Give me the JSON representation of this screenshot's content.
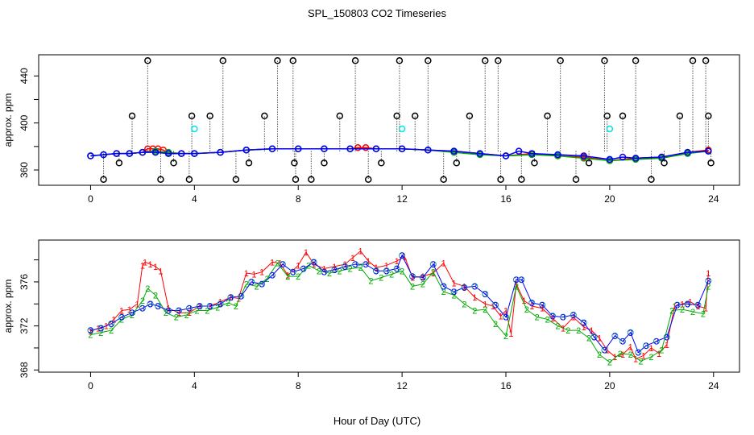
{
  "chart_data": [
    {
      "type": "scatter",
      "title": "SPL_150803  CO2 Timeseries",
      "xlabel": "Hour of Day (UTC)",
      "ylabel": "approx. ppm",
      "xlim": [
        -2,
        25
      ],
      "ylim": [
        347,
        458
      ],
      "xticks": [
        "0",
        "4",
        "8",
        "12",
        "16",
        "20",
        "24"
      ],
      "yticks": [
        "360",
        "400",
        "440"
      ],
      "series": [
        {
          "name": "red",
          "color": "#ff0000",
          "marker": "circle",
          "x": [
            0,
            0.5,
            1,
            1.5,
            2,
            2.2,
            2.4,
            2.6,
            2.8,
            3,
            3.5,
            4,
            5,
            6,
            7,
            8,
            9,
            10,
            10.3,
            10.6,
            11,
            12,
            13,
            14,
            15,
            16,
            17,
            18,
            19,
            20,
            21,
            22,
            23,
            23.8
          ],
          "y": [
            372,
            373,
            374,
            374,
            375,
            378,
            378,
            378,
            377,
            374,
            374,
            374,
            375,
            377,
            378,
            378,
            378,
            378,
            379,
            379,
            378,
            378,
            377,
            376,
            374,
            372,
            374,
            372,
            371,
            368,
            370,
            371,
            375,
            377
          ]
        },
        {
          "name": "green",
          "color": "#00aa00",
          "marker": "circle",
          "x": [
            0,
            0.5,
            1,
            1.5,
            2,
            2.5,
            3,
            3.5,
            4,
            5,
            6,
            7,
            8,
            9,
            10,
            11,
            12,
            13,
            14,
            15,
            16,
            17,
            18,
            19,
            20,
            21,
            22,
            23,
            23.8
          ],
          "y": [
            372,
            373,
            374,
            374,
            375,
            376,
            375,
            374,
            374,
            375,
            377,
            378,
            378,
            378,
            378,
            378,
            378,
            377,
            375,
            373,
            372,
            373,
            372,
            370,
            368,
            369,
            370,
            374,
            376
          ]
        },
        {
          "name": "blue",
          "color": "#0000ff",
          "marker": "circle",
          "x": [
            0,
            0.5,
            1,
            1.5,
            2,
            2.5,
            3,
            3.5,
            4,
            5,
            6,
            7,
            8,
            9,
            10,
            11,
            12,
            13,
            14,
            15,
            16,
            16.5,
            17,
            18,
            19,
            20,
            20.5,
            21,
            22,
            23,
            23.8
          ],
          "y": [
            372,
            373,
            374,
            374,
            375,
            375,
            374,
            374,
            374,
            375,
            377,
            378,
            378,
            378,
            378,
            378,
            378,
            377,
            376,
            374,
            372,
            376,
            374,
            373,
            372,
            369,
            371,
            370,
            371,
            375,
            376
          ]
        },
        {
          "name": "black",
          "color": "#000000",
          "marker": "circle",
          "x": [
            0.5,
            1.1,
            1.6,
            2.2,
            2.7,
            3.2,
            3.8,
            3.9,
            4.6,
            5.1,
            5.6,
            6.1,
            6.7,
            7.2,
            7.8,
            7.85,
            7.9,
            8.5,
            9.0,
            9.6,
            10.2,
            10.7,
            11.2,
            11.8,
            11.9,
            12.5,
            13.0,
            13.6,
            14.1,
            14.6,
            15.2,
            15.7,
            15.8,
            16.6,
            17.1,
            17.6,
            18.1,
            18.7,
            19.2,
            19.8,
            19.9,
            20.5,
            21.0,
            21.6,
            22.1,
            22.7,
            23.2,
            23.7,
            23.8,
            23.9
          ],
          "y": [
            352,
            366,
            406,
            453,
            352,
            366,
            352,
            406,
            406,
            453,
            352,
            366,
            406,
            453,
            453,
            366,
            352,
            352,
            366,
            406,
            453,
            352,
            366,
            406,
            453,
            406,
            453,
            352,
            366,
            406,
            453,
            453,
            352,
            352,
            366,
            406,
            453,
            352,
            366,
            453,
            406,
            406,
            453,
            352,
            366,
            406,
            453,
            453,
            406,
            366
          ]
        },
        {
          "name": "cyan",
          "color": "#00e5e5",
          "marker": "circle",
          "x": [
            4,
            12,
            20
          ],
          "y": [
            395,
            395,
            395
          ]
        }
      ]
    },
    {
      "type": "scatter",
      "title": "",
      "xlabel": "Hour of Day (UTC)",
      "ylabel": "approx. ppm",
      "xlim": [
        -2,
        25
      ],
      "ylim": [
        367.8,
        379.8
      ],
      "xticks": [
        "0",
        "4",
        "8",
        "12",
        "16",
        "20",
        "24"
      ],
      "yticks": [
        "368",
        "372",
        "376"
      ],
      "series": [
        {
          "name": "1",
          "color": "#ff0000",
          "marker": "1",
          "x": [
            0,
            0.3,
            0.6,
            0.9,
            1.2,
            1.5,
            1.8,
            2.0,
            2.1,
            2.3,
            2.5,
            2.7,
            3.0,
            3.4,
            3.8,
            4.2,
            4.6,
            5.0,
            5.4,
            5.7,
            6.0,
            6.3,
            6.6,
            7.0,
            7.3,
            7.6,
            8.0,
            8.3,
            8.6,
            9.0,
            9.4,
            9.8,
            10.1,
            10.4,
            10.7,
            11.0,
            11.4,
            11.8,
            12.1,
            12.4,
            12.8,
            13.2,
            13.6,
            14.0,
            14.4,
            14.8,
            15.2,
            15.5,
            15.8,
            16.0,
            16.2,
            16.4,
            16.7,
            17.0,
            17.4,
            17.8,
            18.2,
            18.6,
            19.0,
            19.3,
            19.6,
            19.9,
            20.2,
            20.5,
            20.8,
            21.0,
            21.3,
            21.6,
            21.9,
            22.2,
            22.5,
            22.8,
            23.1,
            23.4,
            23.7,
            23.8
          ],
          "y": [
            371.5,
            371.8,
            372.0,
            372.6,
            373.4,
            373.5,
            374.0,
            377.5,
            377.8,
            377.6,
            377.4,
            377.0,
            373.6,
            373.2,
            373.2,
            373.8,
            373.8,
            374.2,
            374.6,
            374.5,
            376.8,
            376.7,
            376.9,
            377.8,
            377.7,
            376.6,
            377.5,
            378.7,
            377.6,
            377.2,
            377.4,
            377.6,
            378.2,
            378.8,
            377.9,
            377.3,
            377.5,
            377.9,
            378.3,
            376.4,
            376.5,
            376.8,
            377.7,
            375.9,
            375.6,
            374.6,
            374.0,
            373.8,
            372.9,
            373.4,
            371.3,
            375.8,
            374.3,
            373.8,
            373.6,
            372.7,
            371.8,
            372.8,
            371.9,
            371.6,
            370.9,
            369.8,
            369.2,
            369.4,
            370.1,
            369.0,
            369.3,
            370.0,
            369.5,
            370.3,
            373.8,
            374.0,
            374.2,
            373.8,
            373.6,
            376.8
          ]
        },
        {
          "name": "2",
          "color": "#00aa00",
          "marker": "2",
          "x": [
            0,
            0.4,
            0.8,
            1.2,
            1.6,
            2.0,
            2.2,
            2.5,
            2.9,
            3.3,
            3.7,
            4.1,
            4.5,
            4.9,
            5.3,
            5.6,
            6.0,
            6.4,
            6.8,
            7.2,
            7.6,
            8.0,
            8.4,
            8.8,
            9.2,
            9.6,
            10.0,
            10.4,
            10.8,
            11.2,
            11.6,
            12.0,
            12.4,
            12.8,
            13.2,
            13.6,
            14.0,
            14.4,
            14.8,
            15.2,
            15.6,
            16.0,
            16.4,
            16.8,
            17.2,
            17.6,
            18.0,
            18.4,
            18.8,
            19.2,
            19.6,
            20.0,
            20.4,
            20.8,
            21.2,
            21.6,
            22.0,
            22.4,
            22.8,
            23.2,
            23.6,
            23.8
          ],
          "y": [
            371.2,
            371.4,
            371.6,
            372.6,
            373.0,
            374.3,
            375.4,
            374.8,
            373.2,
            372.8,
            373.0,
            373.4,
            373.4,
            373.7,
            374.1,
            373.8,
            375.8,
            375.6,
            376.3,
            377.7,
            376.5,
            376.5,
            377.5,
            377.0,
            376.8,
            377.0,
            377.2,
            377.3,
            376.1,
            376.4,
            376.7,
            377.0,
            375.6,
            375.8,
            376.9,
            375.1,
            374.8,
            374.0,
            373.4,
            373.5,
            372.2,
            371.1,
            375.6,
            373.5,
            372.8,
            372.6,
            372.0,
            371.6,
            371.6,
            370.9,
            369.4,
            368.7,
            369.5,
            369.4,
            368.8,
            369.2,
            369.8,
            373.4,
            373.5,
            373.3,
            373.1,
            375.6
          ]
        },
        {
          "name": "3",
          "color": "#0000ff",
          "marker": "3",
          "x": [
            0,
            0.4,
            0.8,
            1.2,
            1.6,
            2.0,
            2.3,
            2.6,
            3.0,
            3.4,
            3.8,
            4.2,
            4.6,
            5.0,
            5.4,
            5.8,
            6.2,
            6.6,
            7.0,
            7.4,
            7.8,
            8.2,
            8.6,
            9.0,
            9.4,
            9.8,
            10.2,
            10.6,
            11.0,
            11.4,
            11.8,
            12.0,
            12.4,
            12.8,
            13.2,
            13.6,
            14.0,
            14.4,
            14.8,
            15.2,
            15.6,
            16.0,
            16.4,
            16.6,
            17.0,
            17.4,
            17.8,
            18.2,
            18.6,
            19.0,
            19.4,
            19.8,
            20.2,
            20.5,
            20.8,
            21.1,
            21.4,
            21.8,
            22.2,
            22.6,
            23.0,
            23.4,
            23.8
          ],
          "y": [
            371.6,
            371.8,
            372.2,
            372.8,
            373.2,
            373.6,
            374.0,
            373.8,
            373.4,
            373.4,
            373.6,
            373.8,
            373.8,
            374.0,
            374.6,
            374.7,
            376.0,
            375.8,
            376.6,
            377.6,
            376.9,
            377.2,
            377.8,
            376.9,
            377.1,
            377.4,
            377.6,
            377.6,
            377.0,
            377.0,
            377.2,
            378.4,
            376.5,
            376.4,
            377.6,
            375.6,
            375.1,
            375.5,
            375.6,
            374.9,
            373.9,
            372.8,
            376.2,
            376.2,
            374.1,
            373.9,
            372.9,
            372.8,
            373.0,
            372.3,
            371.0,
            369.8,
            371.1,
            370.6,
            371.4,
            369.6,
            370.2,
            370.6,
            371.0,
            373.9,
            374.0,
            373.9,
            376.1
          ]
        }
      ]
    }
  ]
}
